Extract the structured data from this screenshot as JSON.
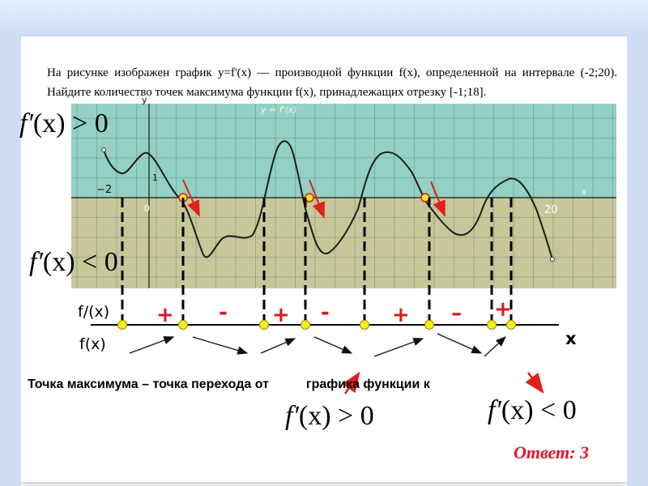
{
  "problem": {
    "text": "На рисунке изображен график y=f'(x) — производной функции f(x), определенной на интервале (-2;20). Найдите количество точек максимума функции f(x), принадлежащих отрезку [-1;18]."
  },
  "graph": {
    "x_start_label": "−2",
    "x_end_label": "20",
    "origin_label": "0",
    "y_tick_label": "1",
    "y_axis_label": "y",
    "x_axis_label": "x",
    "func_label": "y = f'(x)"
  },
  "formulas": {
    "top_left": {
      "f": "f",
      "prime": "′",
      "arg": "(x)",
      "rel": ">",
      "val": "0"
    },
    "mid_left": {
      "f": "f",
      "prime": "′",
      "arg": "(x)",
      "rel": "<",
      "val": "0"
    },
    "bottom_a": {
      "f": "f",
      "prime": "′",
      "arg": "(x)",
      "rel": ">",
      "val": "0"
    },
    "bottom_b": {
      "f": "f",
      "prime": "′",
      "arg": "(x)",
      "rel": "<",
      "val": "0"
    }
  },
  "sign_row": {
    "label_deriv": "f/(x)",
    "label_func": "f(x)",
    "axis_label": "x",
    "signs": [
      "+",
      "-",
      "+",
      "-",
      "+",
      "–",
      "+"
    ]
  },
  "bottom_text": {
    "part1": "Точка максимума – точка перехода от",
    "part2": "графика функции к"
  },
  "answer": "Ответ: 3",
  "colors": {
    "upper_region": "#92d1c3",
    "lower_region": "#c7c79a",
    "sign_color": "#d81a20",
    "point_fill": "#f4ef1c",
    "arrow_red": "#e0201c"
  }
}
